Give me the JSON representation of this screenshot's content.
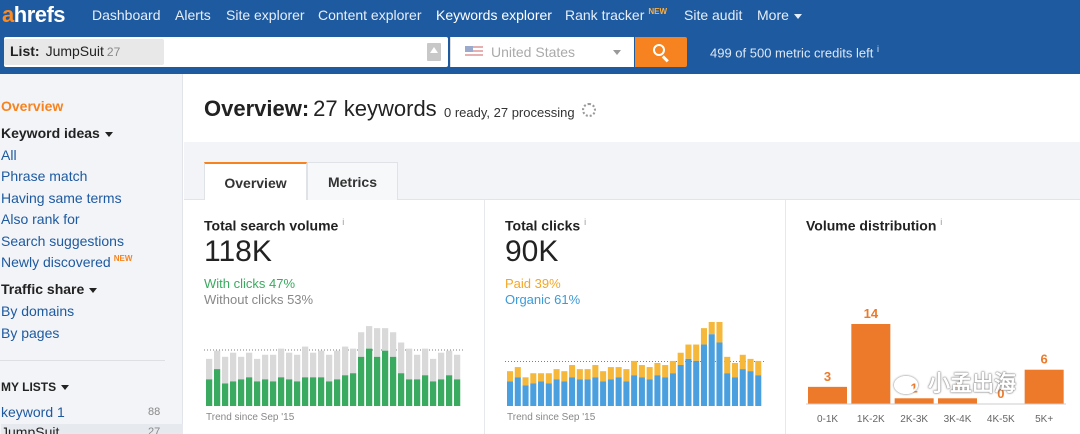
{
  "nav": {
    "logo_a": "a",
    "logo_rest": "hrefs",
    "items": [
      {
        "label": "Dashboard"
      },
      {
        "label": "Alerts"
      },
      {
        "label": "Site explorer"
      },
      {
        "label": "Content explorer"
      },
      {
        "label": "Keywords explorer",
        "active": true
      },
      {
        "label": "Rank tracker",
        "badge": "NEW"
      },
      {
        "label": "Site audit"
      },
      {
        "label": "More"
      }
    ]
  },
  "search": {
    "list_label": "List:",
    "list_name": "JumpSuit",
    "list_count": "27",
    "country": "United States",
    "credits": "499 of 500 metric credits left",
    "credits_info": "i"
  },
  "sidebar": {
    "overview": "Overview",
    "keyword_ideas": "Keyword ideas",
    "ideas": [
      "All",
      "Phrase match",
      "Having same terms",
      "Also rank for",
      "Search suggestions",
      "Newly discovered"
    ],
    "new_badge": "NEW",
    "traffic_share": "Traffic share",
    "traffic": [
      "By domains",
      "By pages"
    ],
    "my_lists": "MY LISTS",
    "lists": [
      {
        "name": "keyword 1",
        "count": "88"
      },
      {
        "name": "JumpSuit",
        "count": "27"
      }
    ]
  },
  "overview": {
    "title_bold": "Overview:",
    "title_rest": "27 keywords",
    "status": "0 ready, 27 processing"
  },
  "tabs": [
    "Overview",
    "Metrics"
  ],
  "cards": {
    "volume": {
      "title": "Total search volume",
      "info": "i",
      "value": "118K",
      "line1": "With clicks 47%",
      "line2": "Without clicks 53%",
      "trend": "Trend since Sep '15"
    },
    "clicks": {
      "title": "Total clicks",
      "info": "i",
      "value": "90K",
      "line1": "Paid 39%",
      "line2": "Organic 61%",
      "trend": "Trend since Sep '15"
    },
    "distribution": {
      "title": "Volume distribution",
      "info": "i"
    }
  },
  "colors": {
    "accent": "#f6831f",
    "nav_bg": "#1e5aa0",
    "green": "#3aaa60",
    "grey": "#d9d9d9",
    "blue": "#4a9fde",
    "yellow": "#f5b83a",
    "orange": "#ec7a2a"
  },
  "chart_data": [
    {
      "type": "bar",
      "name": "search-volume-trend",
      "stacked": true,
      "series": [
        {
          "name": "With clicks",
          "values": [
            26,
            36,
            22,
            24,
            26,
            28,
            24,
            26,
            24,
            28,
            26,
            24,
            28,
            28,
            28,
            24,
            26,
            30,
            32,
            48,
            56,
            48,
            54,
            48,
            32,
            26,
            26,
            30,
            24,
            26,
            30,
            26
          ]
        },
        {
          "name": "Without clicks",
          "values": [
            20,
            18,
            26,
            28,
            22,
            24,
            22,
            24,
            26,
            28,
            26,
            26,
            30,
            24,
            26,
            26,
            28,
            28,
            24,
            24,
            22,
            28,
            22,
            24,
            30,
            30,
            24,
            26,
            22,
            26,
            24,
            24
          ]
        }
      ]
    },
    {
      "type": "bar",
      "name": "total-clicks-trend",
      "stacked": true,
      "series": [
        {
          "name": "Organic",
          "values": [
            24,
            28,
            20,
            22,
            24,
            22,
            26,
            24,
            28,
            26,
            26,
            28,
            24,
            26,
            28,
            24,
            30,
            28,
            26,
            30,
            28,
            32,
            40,
            46,
            44,
            60,
            70,
            62,
            32,
            28,
            36,
            34,
            30
          ]
        },
        {
          "name": "Paid",
          "values": [
            10,
            10,
            8,
            10,
            8,
            10,
            10,
            10,
            12,
            10,
            10,
            12,
            10,
            12,
            10,
            12,
            14,
            12,
            12,
            12,
            12,
            12,
            12,
            14,
            16,
            16,
            22,
            20,
            16,
            14,
            14,
            12,
            14
          ]
        }
      ]
    },
    {
      "type": "bar",
      "name": "volume-distribution",
      "categories": [
        "0-1K",
        "1K-2K",
        "2K-3K",
        "3K-4K",
        "4K-5K",
        "5K+"
      ],
      "values": [
        3,
        14,
        1,
        1,
        0,
        6
      ],
      "ylim": [
        0,
        14
      ]
    }
  ],
  "watermark": "小孟出海"
}
